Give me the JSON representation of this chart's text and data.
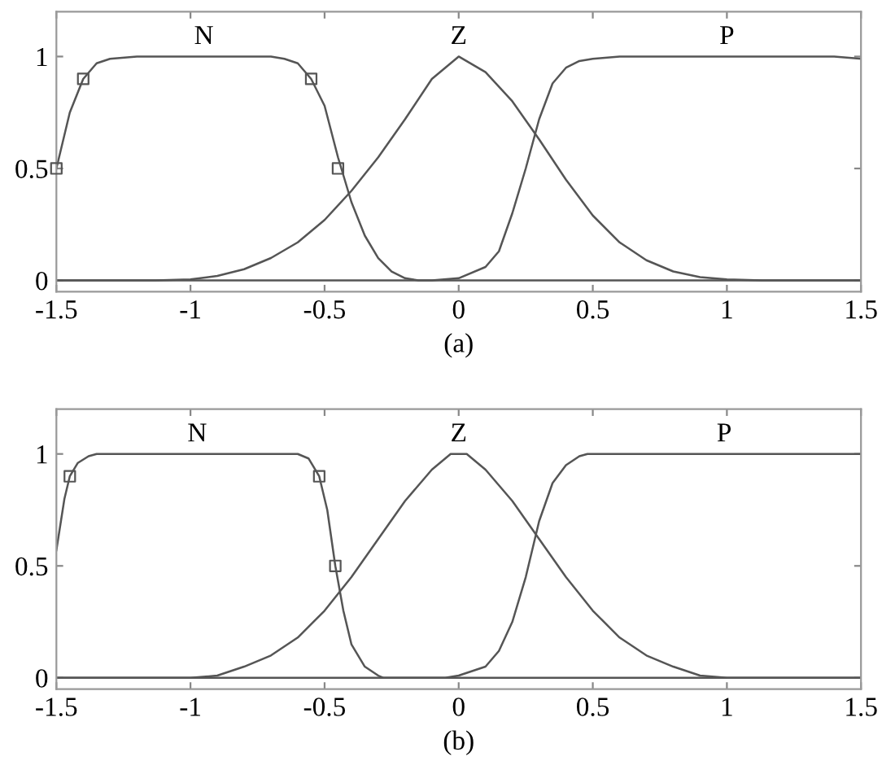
{
  "chart_data": [
    {
      "type": "line",
      "xlabel": "(a)",
      "xlim": [
        -1.5,
        1.5
      ],
      "ylim": [
        -0.05,
        1.2
      ],
      "xticks": [
        -1.5,
        -1,
        -0.5,
        0,
        0.5,
        1,
        1.5
      ],
      "yticks": [
        0,
        0.5,
        1
      ],
      "grid": false,
      "legend": false,
      "marker": "none",
      "line_style": "solid",
      "series": [
        {
          "name": "N",
          "color": "#555555",
          "x": [
            -1.5,
            -1.45,
            -1.4,
            -1.35,
            -1.3,
            -1.2,
            -0.7,
            -0.65,
            -0.6,
            -0.55,
            -0.5,
            -0.45,
            -0.4,
            -0.35,
            -0.3,
            -0.25,
            -0.2,
            -0.15,
            1.5
          ],
          "values": [
            0.5,
            0.75,
            0.9,
            0.97,
            0.99,
            1,
            1,
            0.99,
            0.97,
            0.9,
            0.78,
            0.55,
            0.35,
            0.2,
            0.1,
            0.04,
            0.01,
            0,
            0
          ]
        },
        {
          "name": "Z",
          "color": "#555555",
          "x": [
            -1.5,
            -1.13,
            -1.0,
            -0.9,
            -0.8,
            -0.7,
            -0.6,
            -0.5,
            -0.4,
            -0.3,
            -0.2,
            -0.1,
            0,
            0.1,
            0.2,
            0.3,
            0.4,
            0.5,
            0.6,
            0.7,
            0.8,
            0.9,
            1.0,
            1.13,
            1.5
          ],
          "values": [
            0,
            0,
            0.005,
            0.02,
            0.05,
            0.1,
            0.17,
            0.27,
            0.4,
            0.55,
            0.72,
            0.9,
            1,
            0.93,
            0.8,
            0.63,
            0.45,
            0.29,
            0.17,
            0.09,
            0.04,
            0.015,
            0.005,
            0,
            0
          ]
        },
        {
          "name": "P",
          "color": "#555555",
          "x": [
            -1.5,
            -0.1,
            0,
            0.1,
            0.15,
            0.2,
            0.25,
            0.3,
            0.35,
            0.4,
            0.45,
            0.5,
            0.6,
            1.4,
            1.5
          ],
          "values": [
            0,
            0,
            0.01,
            0.06,
            0.13,
            0.3,
            0.5,
            0.72,
            0.88,
            0.95,
            0.98,
            0.99,
            1,
            1,
            0.99
          ]
        },
        {
          "type": "scatter",
          "marker": "square",
          "color": "#555555",
          "x": [
            -1.5,
            -1.4,
            -0.55,
            -0.45
          ],
          "values": [
            0.5,
            0.9,
            0.9,
            0.5
          ]
        }
      ]
    },
    {
      "type": "line",
      "xlabel": "(b)",
      "xlim": [
        -1.5,
        1.5
      ],
      "ylim": [
        -0.05,
        1.2
      ],
      "xticks": [
        -1.5,
        -1,
        -0.5,
        0,
        0.5,
        1,
        1.5
      ],
      "yticks": [
        0,
        0.5,
        1
      ],
      "grid": false,
      "legend": false,
      "marker": "none",
      "line_style": "solid",
      "series": [
        {
          "name": "N",
          "color": "#555555",
          "x": [
            -1.5,
            -1.47,
            -1.45,
            -1.42,
            -1.38,
            -1.35,
            -0.6,
            -0.56,
            -0.52,
            -0.49,
            -0.46,
            -0.43,
            -0.4,
            -0.35,
            -0.3,
            -0.28,
            1.5
          ],
          "values": [
            0.57,
            0.8,
            0.9,
            0.96,
            0.99,
            1,
            1,
            0.98,
            0.9,
            0.75,
            0.5,
            0.3,
            0.15,
            0.05,
            0.01,
            0,
            0
          ]
        },
        {
          "name": "Z",
          "color": "#555555",
          "x": [
            -1.5,
            -1.0,
            -0.9,
            -0.8,
            -0.7,
            -0.6,
            -0.5,
            -0.4,
            -0.3,
            -0.2,
            -0.1,
            -0.03,
            0.03,
            0.1,
            0.2,
            0.3,
            0.4,
            0.5,
            0.6,
            0.7,
            0.8,
            0.9,
            1.0,
            1.5
          ],
          "values": [
            0,
            0,
            0.01,
            0.05,
            0.1,
            0.18,
            0.3,
            0.45,
            0.62,
            0.79,
            0.93,
            1,
            1,
            0.93,
            0.79,
            0.62,
            0.45,
            0.3,
            0.18,
            0.1,
            0.05,
            0.01,
            0,
            0
          ]
        },
        {
          "name": "P",
          "color": "#555555",
          "x": [
            -1.5,
            -0.05,
            0,
            0.1,
            0.15,
            0.2,
            0.25,
            0.3,
            0.35,
            0.4,
            0.45,
            0.48,
            1.5
          ],
          "values": [
            0,
            0,
            0.01,
            0.05,
            0.12,
            0.25,
            0.45,
            0.7,
            0.87,
            0.95,
            0.99,
            1,
            1
          ]
        },
        {
          "type": "scatter",
          "marker": "square",
          "color": "#555555",
          "x": [
            -1.45,
            -0.52,
            -0.46
          ],
          "values": [
            0.9,
            0.9,
            0.5
          ]
        }
      ]
    }
  ]
}
